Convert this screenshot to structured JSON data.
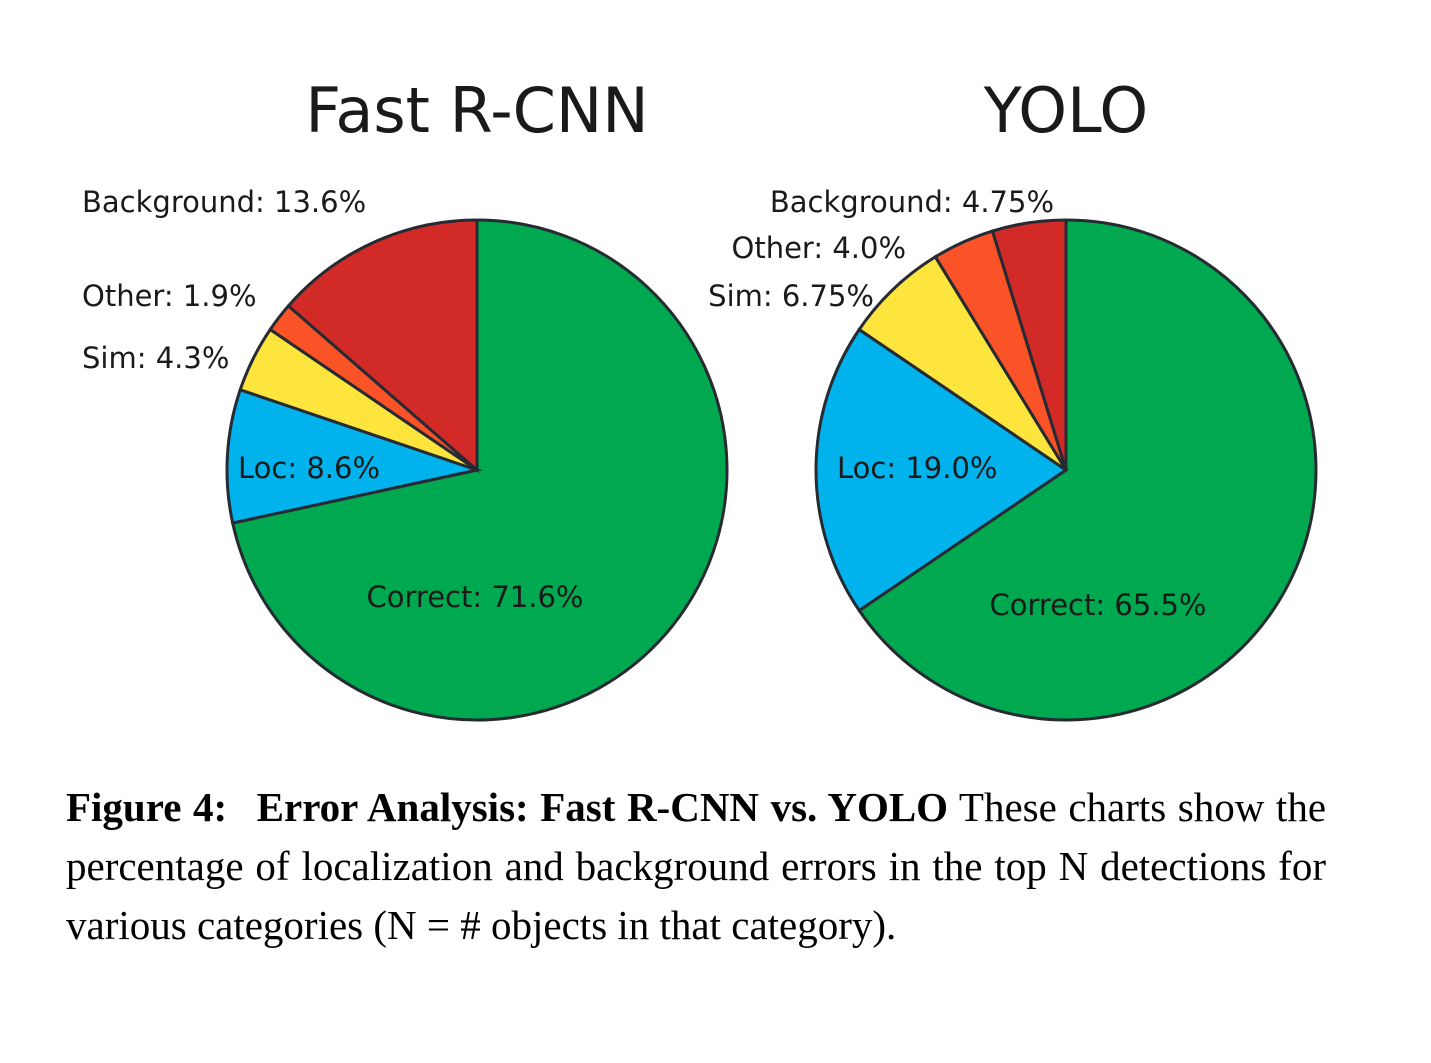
{
  "chart_data": [
    {
      "type": "pie",
      "title": "Fast R-CNN",
      "start_angle_deg": 0,
      "direction": "clockwise",
      "slices": [
        {
          "label": "Correct: 71.6%",
          "category": "Correct",
          "value": 71.6,
          "color": "#00a84f"
        },
        {
          "label": "Loc: 8.6%",
          "category": "Loc",
          "value": 8.6,
          "color": "#00b3ed"
        },
        {
          "label": "Sim: 4.3%",
          "category": "Sim",
          "value": 4.3,
          "color": "#fde53d"
        },
        {
          "label": "Other: 1.9%",
          "category": "Other",
          "value": 1.9,
          "color": "#fa5327"
        },
        {
          "label": "Background: 13.6%",
          "category": "Background",
          "value": 13.6,
          "color": "#d12a27"
        }
      ]
    },
    {
      "type": "pie",
      "title": "YOLO",
      "start_angle_deg": 0,
      "direction": "clockwise",
      "slices": [
        {
          "label": "Correct: 65.5%",
          "category": "Correct",
          "value": 65.5,
          "color": "#00a84f"
        },
        {
          "label": "Loc: 19.0%",
          "category": "Loc",
          "value": 19.0,
          "color": "#00b3ed"
        },
        {
          "label": "Sim: 6.75%",
          "category": "Sim",
          "value": 6.75,
          "color": "#fde53d"
        },
        {
          "label": "Other: 4.0%",
          "category": "Other",
          "value": 4.0,
          "color": "#fa5327"
        },
        {
          "label": "Background: 4.75%",
          "category": "Background",
          "value": 4.75,
          "color": "#d12a27"
        }
      ]
    }
  ],
  "caption": {
    "figure_number": "Figure 4:",
    "title": "Error Analysis: Fast R-CNN vs. YOLO",
    "text": "These charts show the percentage of localization and background errors in the top N detections for various categories (N = # objects in that category)."
  },
  "colors": {
    "slice_outline": "#262b33",
    "text": "#1a1a1a"
  }
}
